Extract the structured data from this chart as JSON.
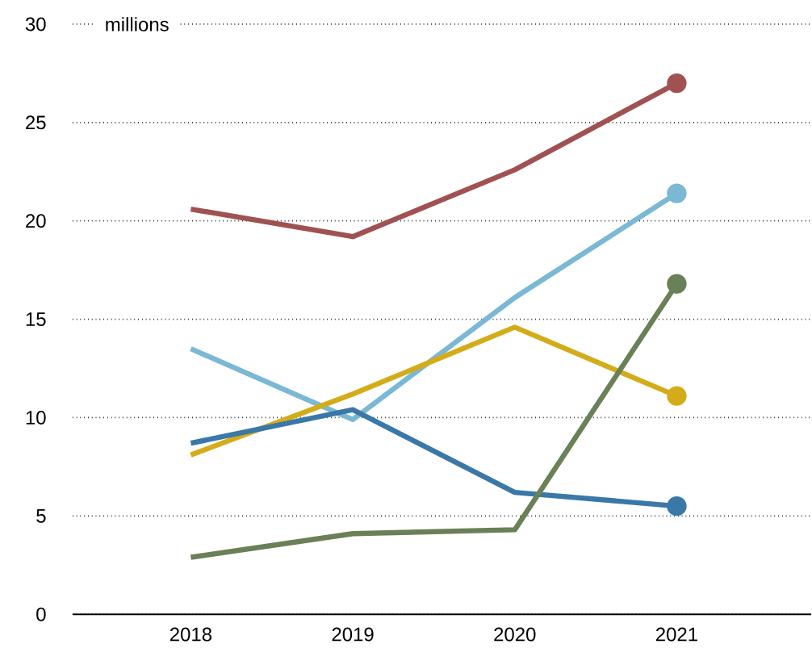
{
  "chart_data": {
    "type": "line",
    "ylabel": "millions",
    "categories": [
      "2018",
      "2019",
      "2020",
      "2021"
    ],
    "series": [
      {
        "color": "#a05252",
        "values": [
          20.6,
          19.2,
          22.6,
          27.0
        ]
      },
      {
        "color": "#7ab8d4",
        "values": [
          13.5,
          9.9,
          16.1,
          21.4
        ]
      },
      {
        "color": "#d4ac1a",
        "values": [
          8.1,
          11.2,
          14.6,
          11.1
        ]
      },
      {
        "color": "#3a78a8",
        "values": [
          8.7,
          10.4,
          6.2,
          5.5
        ]
      },
      {
        "color": "#6a8058",
        "values": [
          2.9,
          4.1,
          4.3,
          16.8
        ]
      }
    ],
    "ylim": [
      0,
      30
    ],
    "yticks": [
      0,
      5,
      10,
      15,
      20,
      25,
      30
    ],
    "grid": "y",
    "line_style": "solid"
  }
}
